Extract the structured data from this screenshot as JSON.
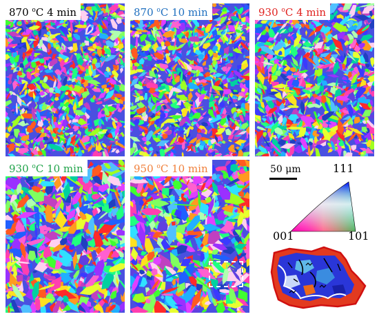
{
  "panels": [
    {
      "temp": "870 ",
      "unit": "C 4 min",
      "color": "#000000"
    },
    {
      "temp": "870 ",
      "unit": "C 10 min",
      "color": "#1f6fbf"
    },
    {
      "temp": "930 ",
      "unit": "C 4 min",
      "color": "#e0201e"
    },
    {
      "temp": "930 ",
      "unit": "C 10 min",
      "color": "#20a34a"
    },
    {
      "temp": "950 ",
      "unit": "C 10 min",
      "color": "#f0803c"
    }
  ],
  "degree_mark": "o",
  "scale_bar_label": "50 μm",
  "ipf": {
    "label_111": "111",
    "label_001": "001",
    "label_101": "101"
  }
}
